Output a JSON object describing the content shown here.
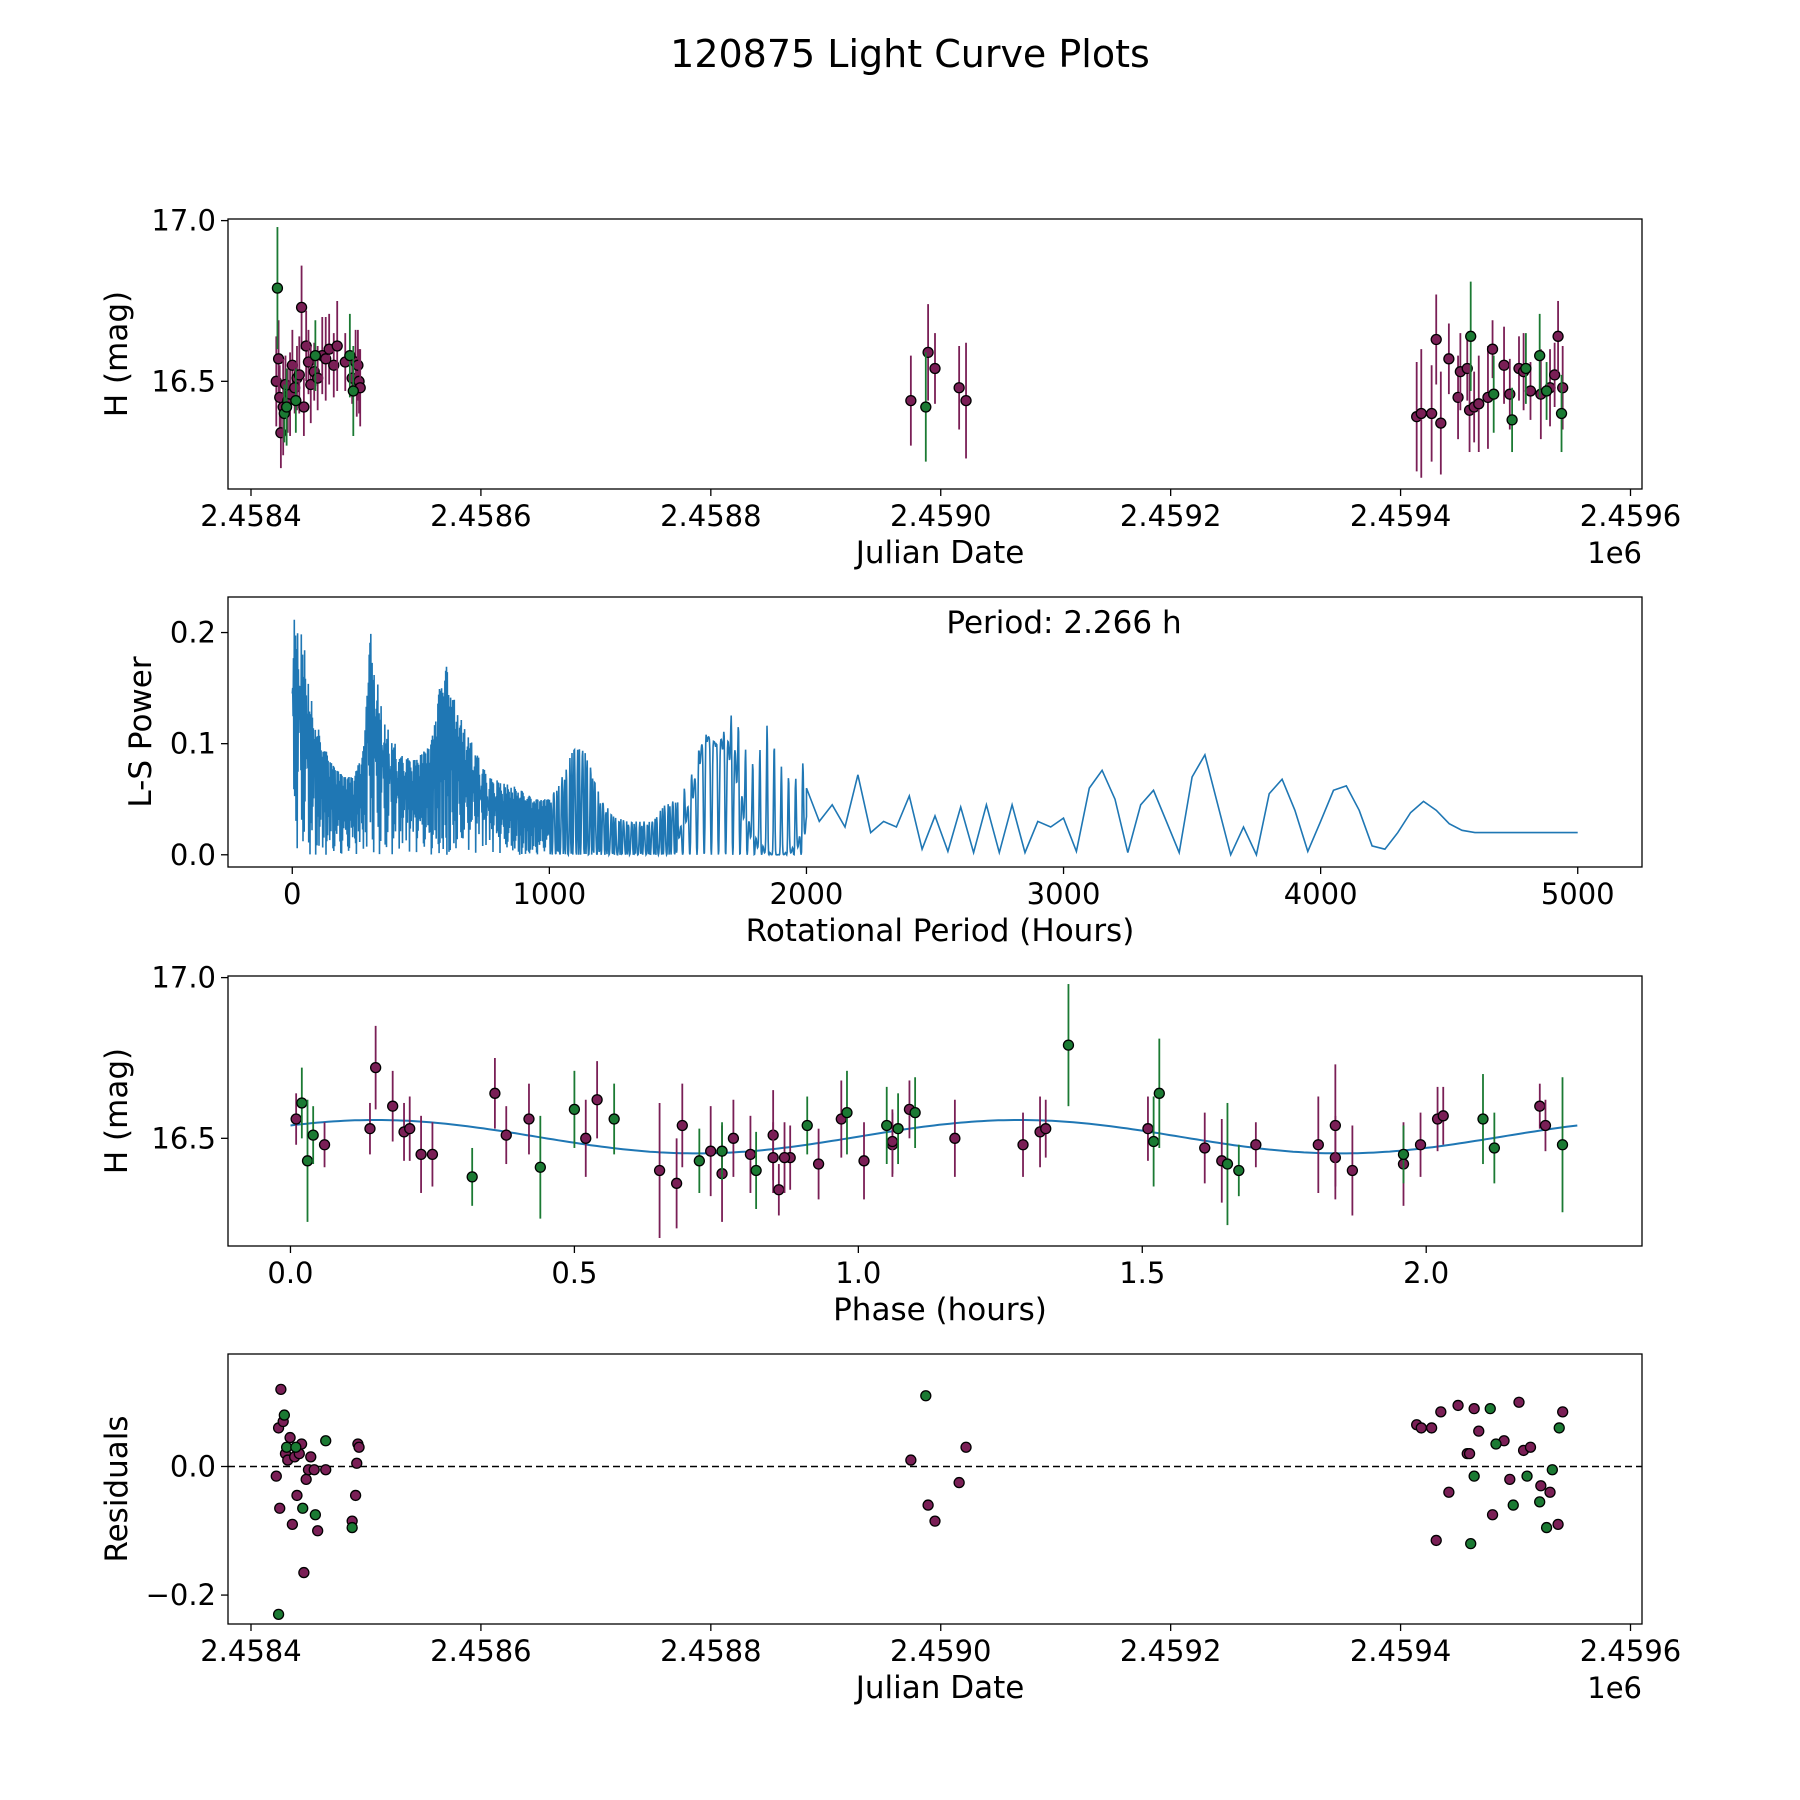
{
  "figure_title": "120875 Light Curve Plots",
  "colors": {
    "magenta": "#7a1f56",
    "green": "#1b7a33",
    "line": "#1f77b4",
    "edge": "#000000"
  },
  "chart_data": [
    {
      "type": "scatter",
      "id": "lc",
      "xlabel": "Julian Date",
      "ylabel": "H (mag)",
      "offset_label": "1e6",
      "xlim": [
        2.45838,
        2.45961
      ],
      "ylim": [
        16.165,
        17.005
      ],
      "xticks": [
        2.4584,
        2.4586,
        2.4588,
        2.459,
        2.4592,
        2.4594,
        2.4596
      ],
      "xtick_labels": [
        "2.4584",
        "2.4586",
        "2.4588",
        "2.4590",
        "2.4592",
        "2.4594",
        "2.4596"
      ],
      "yticks": [
        16.5,
        17.0
      ],
      "ytick_labels": [
        "16.5",
        "17.0"
      ],
      "series": [
        {
          "name": "filter-1",
          "color": "magenta",
          "x": [
            2.458422,
            2.458424,
            2.458425,
            2.458426,
            2.458428,
            2.45843,
            2.458432,
            2.458434,
            2.458436,
            2.458438,
            2.45844,
            2.458442,
            2.458444,
            2.458446,
            2.458448,
            2.45845,
            2.458452,
            2.458455,
            2.458458,
            2.458462,
            2.458465,
            2.458468,
            2.458472,
            2.458475,
            2.458482,
            2.458488,
            2.458491,
            2.458492,
            2.458493,
            2.458494,
            2.458495,
            2.458974,
            2.458989,
            2.458995,
            2.459016,
            2.459022,
            2.459414,
            2.459418,
            2.459427,
            2.459431,
            2.459435,
            2.459442,
            2.45945,
            2.459452,
            2.459458,
            2.45946,
            2.459464,
            2.459468,
            2.459476,
            2.45948,
            2.45949,
            2.459495,
            2.459503,
            2.459507,
            2.459513,
            2.459522,
            2.45953,
            2.459534,
            2.459537,
            2.459541
          ],
          "y": [
            16.5,
            16.57,
            16.45,
            16.34,
            16.42,
            16.49,
            16.44,
            16.46,
            16.55,
            16.48,
            16.51,
            16.52,
            16.73,
            16.42,
            16.61,
            16.56,
            16.49,
            16.53,
            16.51,
            16.58,
            16.57,
            16.6,
            16.55,
            16.61,
            16.56,
            16.51,
            16.56,
            16.48,
            16.55,
            16.5,
            16.48,
            16.44,
            16.59,
            16.54,
            16.48,
            16.44,
            16.39,
            16.4,
            16.4,
            16.63,
            16.37,
            16.57,
            16.45,
            16.53,
            16.54,
            16.41,
            16.42,
            16.43,
            16.45,
            16.6,
            16.55,
            16.46,
            16.54,
            16.53,
            16.47,
            16.46,
            16.48,
            16.52,
            16.64,
            16.48
          ],
          "yerr": [
            0.14,
            0.12,
            0.1,
            0.11,
            0.15,
            0.09,
            0.1,
            0.13,
            0.11,
            0.08,
            0.1,
            0.12,
            0.13,
            0.09,
            0.11,
            0.1,
            0.12,
            0.09,
            0.1,
            0.12,
            0.13,
            0.11,
            0.1,
            0.14,
            0.09,
            0.08,
            0.1,
            0.09,
            0.11,
            0.1,
            0.12,
            0.14,
            0.15,
            0.11,
            0.13,
            0.18,
            0.17,
            0.2,
            0.15,
            0.14,
            0.16,
            0.11,
            0.13,
            0.12,
            0.1,
            0.13,
            0.11,
            0.15,
            0.16,
            0.09,
            0.12,
            0.11,
            0.1,
            0.12,
            0.09,
            0.14,
            0.12,
            0.1,
            0.11,
            0.13
          ]
        },
        {
          "name": "filter-2",
          "color": "green",
          "x": [
            2.458423,
            2.458429,
            2.458431,
            2.458439,
            2.458456,
            2.458486,
            2.458489,
            2.458987,
            2.459461,
            2.459481,
            2.459497,
            2.459509,
            2.459521,
            2.459527,
            2.45954
          ],
          "y": [
            16.79,
            16.4,
            16.42,
            16.44,
            16.58,
            16.58,
            16.47,
            16.42,
            16.64,
            16.46,
            16.38,
            16.54,
            16.58,
            16.47,
            16.4
          ],
          "yerr": [
            0.19,
            0.09,
            0.12,
            0.1,
            0.11,
            0.13,
            0.14,
            0.17,
            0.17,
            0.12,
            0.1,
            0.11,
            0.13,
            0.09,
            0.12
          ]
        }
      ]
    },
    {
      "type": "line",
      "id": "ls",
      "xlabel": "Rotational Period (Hours)",
      "ylabel": "L-S Power",
      "annotation": "Period: 2.266 h",
      "xlim": [
        -250,
        5250
      ],
      "ylim": [
        -0.011,
        0.232
      ],
      "xticks": [
        0,
        1000,
        2000,
        3000,
        4000,
        5000
      ],
      "xtick_labels": [
        "0",
        "1000",
        "2000",
        "3000",
        "4000",
        "5000"
      ],
      "yticks": [
        0.0,
        0.1,
        0.2
      ],
      "ytick_labels": [
        "0.0",
        "0.1",
        "0.2"
      ],
      "envelope": {
        "x": [
          0,
          10,
          40,
          80,
          120,
          160,
          200,
          240,
          280,
          300,
          320,
          360,
          420,
          480,
          540,
          580,
          600,
          630,
          660,
          700,
          760,
          820,
          880,
          940,
          1000,
          1050,
          1100,
          1150,
          1200,
          1250,
          1300,
          1350,
          1400,
          1450,
          1500,
          1550,
          1600,
          1650,
          1700,
          1720,
          1750,
          1800,
          1850,
          1900,
          1950,
          2000
        ],
        "y": [
          0.22,
          0.21,
          0.2,
          0.13,
          0.1,
          0.08,
          0.07,
          0.07,
          0.1,
          0.21,
          0.17,
          0.12,
          0.09,
          0.085,
          0.1,
          0.16,
          0.17,
          0.14,
          0.12,
          0.1,
          0.07,
          0.065,
          0.06,
          0.05,
          0.05,
          0.07,
          0.1,
          0.09,
          0.05,
          0.035,
          0.03,
          0.03,
          0.03,
          0.045,
          0.05,
          0.07,
          0.11,
          0.1,
          0.12,
          0.135,
          0.1,
          0.08,
          0.12,
          0.08,
          0.065,
          0.09
        ]
      },
      "smooth": {
        "x": [
          2000,
          2050,
          2100,
          2150,
          2200,
          2250,
          2300,
          2350,
          2400,
          2450,
          2500,
          2550,
          2600,
          2650,
          2700,
          2750,
          2800,
          2850,
          2900,
          2950,
          3000,
          3050,
          3100,
          3150,
          3200,
          3250,
          3300,
          3350,
          3400,
          3450,
          3500,
          3550,
          3600,
          3650,
          3700,
          3750,
          3800,
          3850,
          3900,
          3950,
          4000,
          4050,
          4100,
          4150,
          4200,
          4250,
          4300,
          4350,
          4400,
          4450,
          4500,
          4550,
          4600,
          4650,
          4700,
          4750,
          4800,
          4850,
          4900,
          4950,
          5000
        ],
        "y": [
          0.06,
          0.03,
          0.045,
          0.025,
          0.072,
          0.02,
          0.03,
          0.025,
          0.053,
          0.005,
          0.035,
          0.003,
          0.043,
          0.002,
          0.045,
          0.002,
          0.045,
          0.002,
          0.03,
          0.025,
          0.033,
          0.003,
          0.06,
          0.076,
          0.05,
          0.002,
          0.045,
          0.058,
          0.03,
          0.002,
          0.07,
          0.09,
          0.045,
          0.0,
          0.025,
          0.0,
          0.055,
          0.068,
          0.04,
          0.003,
          0.03,
          0.058,
          0.062,
          0.04,
          0.008,
          0.005,
          0.02,
          0.038,
          0.048,
          0.04,
          0.028,
          0.022,
          0.02,
          0.02,
          0.02,
          0.02,
          0.02,
          0.02,
          0.02,
          0.02,
          0.02
        ]
      }
    },
    {
      "type": "scatter",
      "id": "phase",
      "xlabel": "Phase (hours)",
      "ylabel": "H (mag)",
      "xlim": [
        -0.11,
        2.38
      ],
      "ylim": [
        16.165,
        17.005
      ],
      "xticks": [
        0.0,
        0.5,
        1.0,
        1.5,
        2.0
      ],
      "xtick_labels": [
        "0.0",
        "0.5",
        "1.0",
        "1.5",
        "2.0"
      ],
      "yticks": [
        16.5,
        17.0
      ],
      "ytick_labels": [
        "16.5",
        "17.0"
      ],
      "model": {
        "period": 2.266,
        "mean": 16.505,
        "amplitude": 0.052,
        "phase_shift": 0.15
      },
      "series": [
        {
          "name": "filter-1",
          "color": "magenta",
          "x": [
            0.01,
            0.06,
            0.14,
            0.15,
            0.18,
            0.2,
            0.21,
            0.23,
            0.25,
            0.36,
            0.38,
            0.42,
            0.54,
            0.65,
            0.68,
            0.69,
            0.76,
            0.78,
            0.81,
            0.85,
            0.85,
            0.86,
            0.88,
            0.93,
            0.97,
            1.01,
            1.06,
            1.09,
            1.17,
            1.29,
            1.32,
            1.33,
            1.51,
            1.61,
            1.64,
            1.7,
            1.81,
            1.84,
            1.84,
            1.87,
            1.96,
            1.99,
            2.02,
            2.03,
            2.2,
            0.52,
            0.74,
            0.87,
            1.06,
            2.21
          ],
          "y": [
            16.56,
            16.48,
            16.53,
            16.72,
            16.6,
            16.52,
            16.53,
            16.45,
            16.45,
            16.64,
            16.51,
            16.56,
            16.62,
            16.4,
            16.36,
            16.54,
            16.39,
            16.5,
            16.45,
            16.51,
            16.44,
            16.34,
            16.44,
            16.42,
            16.56,
            16.43,
            16.48,
            16.59,
            16.5,
            16.48,
            16.52,
            16.53,
            16.53,
            16.47,
            16.43,
            16.48,
            16.48,
            16.44,
            16.54,
            16.4,
            16.42,
            16.48,
            16.56,
            16.57,
            16.6,
            16.5,
            16.46,
            16.44,
            16.49,
            16.54
          ],
          "yerr": [
            0.08,
            0.07,
            0.08,
            0.13,
            0.11,
            0.09,
            0.1,
            0.12,
            0.1,
            0.11,
            0.09,
            0.11,
            0.12,
            0.21,
            0.14,
            0.13,
            0.15,
            0.12,
            0.12,
            0.14,
            0.11,
            0.08,
            0.1,
            0.11,
            0.12,
            0.12,
            0.1,
            0.09,
            0.12,
            0.1,
            0.11,
            0.09,
            0.1,
            0.11,
            0.13,
            0.07,
            0.15,
            0.13,
            0.19,
            0.14,
            0.13,
            0.1,
            0.1,
            0.09,
            0.07,
            0.12,
            0.14,
            0.11,
            0.1,
            0.08
          ]
        },
        {
          "name": "filter-2",
          "color": "green",
          "x": [
            0.02,
            0.03,
            0.04,
            0.32,
            0.44,
            0.5,
            0.57,
            0.72,
            0.76,
            0.82,
            0.91,
            0.98,
            1.05,
            1.07,
            1.1,
            1.37,
            1.52,
            1.53,
            1.65,
            1.67,
            1.96,
            2.1,
            2.12,
            2.24
          ],
          "y": [
            16.61,
            16.43,
            16.51,
            16.38,
            16.41,
            16.59,
            16.56,
            16.43,
            16.46,
            16.4,
            16.54,
            16.58,
            16.54,
            16.53,
            16.58,
            16.79,
            16.49,
            16.64,
            16.42,
            16.4,
            16.45,
            16.56,
            16.47,
            16.48
          ],
          "yerr": [
            0.11,
            0.19,
            0.09,
            0.09,
            0.16,
            0.12,
            0.11,
            0.1,
            0.09,
            0.12,
            0.09,
            0.13,
            0.12,
            0.11,
            0.11,
            0.19,
            0.14,
            0.17,
            0.19,
            0.08,
            0.09,
            0.14,
            0.11,
            0.21
          ]
        }
      ]
    },
    {
      "type": "scatter",
      "id": "res",
      "xlabel": "Julian Date",
      "ylabel": "Residuals",
      "offset_label": "1e6",
      "xlim": [
        2.45838,
        2.45961
      ],
      "ylim": [
        -0.245,
        0.175
      ],
      "xticks": [
        2.4584,
        2.4586,
        2.4588,
        2.459,
        2.4592,
        2.4594,
        2.4596
      ],
      "xtick_labels": [
        "2.4584",
        "2.4586",
        "2.4588",
        "2.4590",
        "2.4592",
        "2.4594",
        "2.4596"
      ],
      "yticks": [
        -0.2,
        0.0
      ],
      "ytick_labels": [
        "−0.2",
        "0.0"
      ],
      "zero_line": true,
      "series": [
        {
          "name": "filter-1",
          "color": "magenta",
          "x": [
            2.458422,
            2.458424,
            2.458425,
            2.458426,
            2.458428,
            2.45843,
            2.458432,
            2.458434,
            2.458436,
            2.458438,
            2.45844,
            2.458442,
            2.458444,
            2.458446,
            2.458448,
            2.45845,
            2.458452,
            2.458455,
            2.458458,
            2.458465,
            2.458488,
            2.458491,
            2.458492,
            2.458493,
            2.458494,
            2.458974,
            2.458989,
            2.458995,
            2.459016,
            2.459022,
            2.459414,
            2.459418,
            2.459427,
            2.459431,
            2.459435,
            2.459442,
            2.45945,
            2.459458,
            2.45946,
            2.459464,
            2.459468,
            2.45948,
            2.45949,
            2.459495,
            2.459503,
            2.459507,
            2.459513,
            2.459522,
            2.45953,
            2.459537,
            2.459541
          ],
          "y": [
            -0.015,
            0.06,
            -0.065,
            0.12,
            0.07,
            0.02,
            0.01,
            0.045,
            -0.09,
            0.015,
            -0.045,
            0.02,
            0.035,
            -0.165,
            -0.02,
            -0.005,
            0.015,
            -0.005,
            -0.1,
            -0.005,
            -0.085,
            -0.045,
            0.005,
            0.035,
            0.03,
            0.01,
            -0.06,
            -0.085,
            -0.025,
            0.03,
            0.065,
            0.06,
            0.06,
            -0.115,
            0.085,
            -0.04,
            0.095,
            0.02,
            0.02,
            0.09,
            0.055,
            -0.075,
            0.04,
            -0.02,
            0.1,
            0.025,
            0.03,
            -0.03,
            -0.04,
            -0.09,
            0.085
          ],
          "yerr": []
        },
        {
          "name": "filter-2",
          "color": "green",
          "x": [
            2.458424,
            2.458429,
            2.458431,
            2.458439,
            2.458445,
            2.458456,
            2.458465,
            2.458488,
            2.458987,
            2.459461,
            2.459464,
            2.459478,
            2.459483,
            2.459498,
            2.45951,
            2.459521,
            2.459527,
            2.459532,
            2.459538
          ],
          "y": [
            -0.23,
            0.08,
            0.03,
            0.03,
            -0.065,
            -0.075,
            0.04,
            -0.095,
            0.11,
            -0.12,
            -0.015,
            0.09,
            0.035,
            -0.06,
            -0.015,
            -0.055,
            -0.095,
            -0.005,
            0.06
          ],
          "yerr": []
        }
      ]
    }
  ]
}
